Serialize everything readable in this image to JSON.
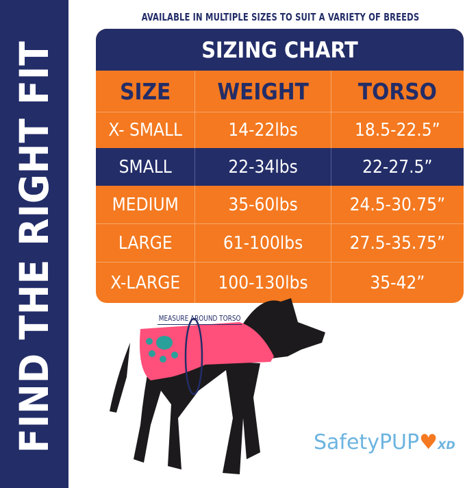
{
  "side_title": "FIND THE RIGHT FIT",
  "subtitle": "AVAILABLE IN MULTIPLE SIZES TO SUIT A VARIETY OF BREEDS",
  "table": {
    "title": "SIZING CHART",
    "headers": [
      "SIZE",
      "WEIGHT",
      "TORSO"
    ],
    "rows": [
      [
        "X- SMALL",
        "14-22lbs",
        "18.5-22.5”"
      ],
      [
        "SMALL",
        "22-34lbs",
        "22-27.5”"
      ],
      [
        "MEDIUM",
        "35-60lbs",
        "24.5-30.75”"
      ],
      [
        "LARGE",
        "61-100lbs",
        "27.5-35.75”"
      ],
      [
        "X-LARGE",
        "100-130lbs",
        "35-42”"
      ]
    ]
  },
  "measure_label": "MEASURE AROUND TORSO",
  "logo": {
    "text": "SafetyPUP",
    "suffix": "XD"
  },
  "colors": {
    "navy": "#232d68",
    "orange": "#f47920",
    "vest": "#ff4f7b",
    "logo_blue": "#6cb4e0"
  }
}
